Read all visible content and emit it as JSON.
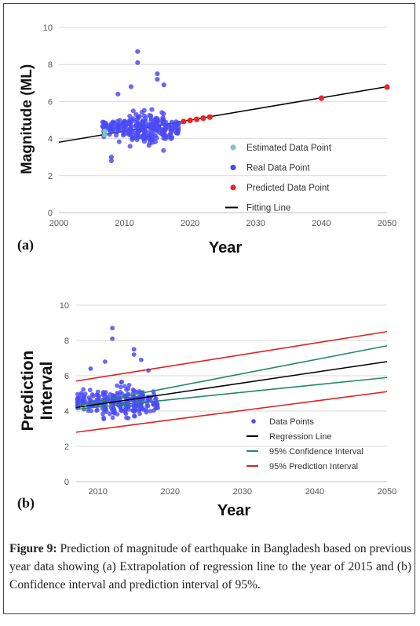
{
  "chart_data": [
    {
      "panel": "(a)",
      "type": "scatter",
      "xlabel": "Year",
      "ylabel": "Magnitude (ML)",
      "xlim": [
        2000,
        2050
      ],
      "ylim": [
        0,
        10
      ],
      "xticks": [
        "2000",
        "2010",
        "2020",
        "2030",
        "2040",
        "2050"
      ],
      "yticks": [
        "0",
        "2",
        "4",
        "6",
        "8",
        "10"
      ],
      "grid": true,
      "legend_position": "lower-right",
      "series": [
        {
          "name": "Estimated Data Point",
          "color": "#7fc4c0",
          "points": [
            [
              2007,
              4.2
            ],
            [
              2007,
              4.4
            ]
          ]
        },
        {
          "name": "Real Data Point",
          "color": "#4b4bf5",
          "year_range": [
            2007,
            2018
          ],
          "notable_points": [
            [
              2012,
              8.7
            ],
            [
              2012,
              8.1
            ],
            [
              2015,
              7.5
            ],
            [
              2015,
              7.2
            ],
            [
              2011,
              6.8
            ],
            [
              2016,
              6.9
            ],
            [
              2008,
              2.8
            ],
            [
              2008,
              3.0
            ],
            [
              2009,
              6.4
            ]
          ]
        },
        {
          "name": "Predicted Data Point",
          "color": "#e82626",
          "points": [
            [
              2019,
              4.92
            ],
            [
              2020,
              4.98
            ],
            [
              2021,
              5.04
            ],
            [
              2022,
              5.1
            ],
            [
              2023,
              5.16
            ],
            [
              2040,
              6.18
            ],
            [
              2050,
              6.78
            ]
          ]
        },
        {
          "name": "Fitting Line",
          "color": "#000000",
          "line": [
            [
              2000,
              3.8
            ],
            [
              2050,
              6.8
            ]
          ]
        }
      ]
    },
    {
      "panel": "(b)",
      "type": "scatter",
      "xlabel": "Year",
      "ylabel": "Prediction Interval",
      "xlim": [
        2007,
        2050
      ],
      "ylim": [
        0,
        10
      ],
      "xticks": [
        "2010",
        "2020",
        "2030",
        "2040",
        "2050"
      ],
      "yticks": [
        "0",
        "2",
        "4",
        "6",
        "8",
        "10"
      ],
      "grid": true,
      "legend_position": "lower-right",
      "series": [
        {
          "name": "Data Points",
          "color": "#4b4bf5",
          "year_range": [
            2007,
            2018
          ]
        },
        {
          "name": "Regression Line",
          "color": "#000000",
          "line": [
            [
              2007,
              4.2
            ],
            [
              2050,
              6.8
            ]
          ]
        },
        {
          "name": "95% Confidence Interval",
          "color": "#1e8a6a",
          "upper": [
            [
              2007,
              4.3
            ],
            [
              2050,
              7.7
            ]
          ],
          "lower": [
            [
              2007,
              4.1
            ],
            [
              2050,
              5.9
            ]
          ]
        },
        {
          "name": "95% Prediction Interval",
          "color": "#e02020",
          "upper": [
            [
              2007,
              5.7
            ],
            [
              2050,
              8.5
            ]
          ],
          "lower": [
            [
              2007,
              2.8
            ],
            [
              2050,
              5.1
            ]
          ]
        }
      ]
    }
  ],
  "caption": {
    "label": "Figure 9:",
    "text": "Prediction of magnitude of earthquake in Bangladesh based on previous year data showing (a) Extrapolation of regression line to the year of 2015 and (b) Confidence interval and prediction interval of 95%."
  }
}
